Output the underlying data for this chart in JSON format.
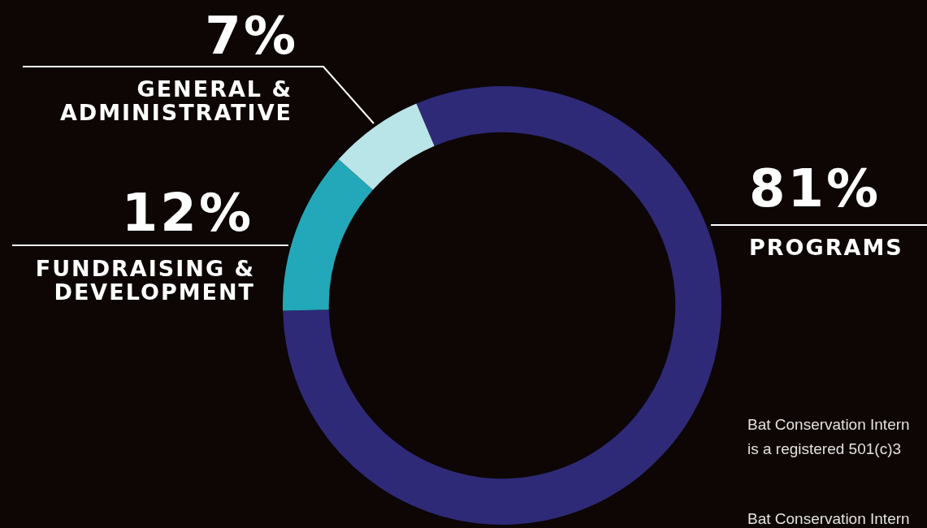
{
  "chart_data": {
    "type": "donut",
    "categories": [
      "PROGRAMS",
      "FUNDRAISING & DEVELOPMENT",
      "GENERAL & ADMINISTRATIVE"
    ],
    "values": [
      81,
      12,
      7
    ],
    "colors": [
      "#2e2a78",
      "#22a8b8",
      "#b9e4e8"
    ],
    "value_labels": [
      "81%",
      "12%",
      "7%"
    ],
    "annotations": [
      "Bat Conservation Intern",
      "is a registered 501(c)3",
      "Bat Conservation Intern"
    ]
  }
}
